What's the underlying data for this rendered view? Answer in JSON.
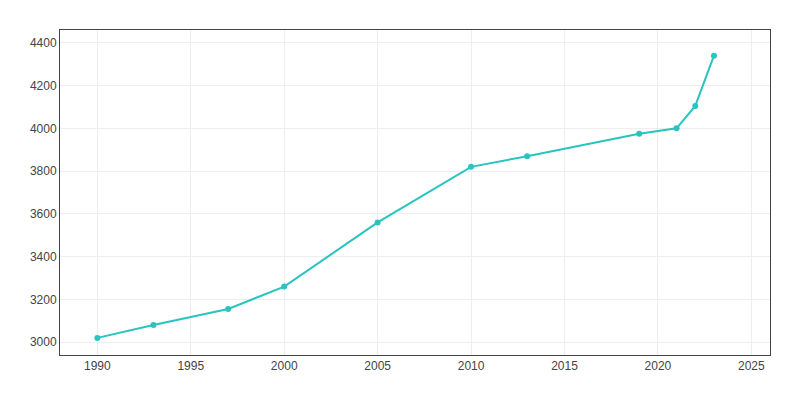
{
  "chart_data": {
    "type": "line",
    "x": [
      1990,
      1993,
      1997,
      2000,
      2005,
      2010,
      2013,
      2019,
      2021,
      2022,
      2023
    ],
    "values": [
      3020,
      3080,
      3155,
      3260,
      3560,
      3820,
      3870,
      3975,
      4000,
      4105,
      4340
    ],
    "color": "#29c4c0",
    "marker": "circle",
    "xlim": [
      1988,
      2026
    ],
    "ylim": [
      2940,
      4460
    ],
    "xticks": [
      1990,
      1995,
      2000,
      2005,
      2010,
      2015,
      2020,
      2025
    ],
    "yticks": [
      3000,
      3200,
      3400,
      3600,
      3800,
      4000,
      4200,
      4400
    ],
    "grid": true
  }
}
